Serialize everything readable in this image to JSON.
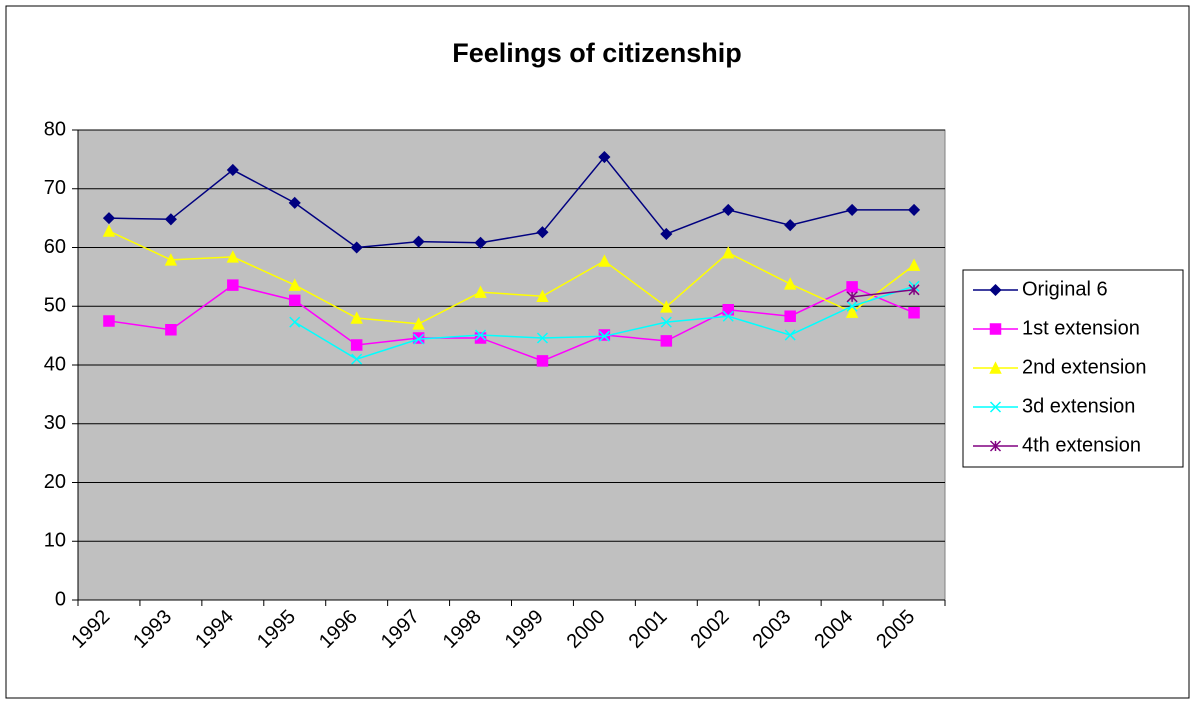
{
  "chart_data": {
    "type": "line",
    "title": "Feelings of citizenship",
    "categories": [
      "1992",
      "1993",
      "1994",
      "1995",
      "1996",
      "1997",
      "1998",
      "1999",
      "2000",
      "2001",
      "2002",
      "2003",
      "2004",
      "2005"
    ],
    "series": [
      {
        "name": "Original 6",
        "color": "#000080",
        "marker": "diamond",
        "values": [
          65,
          64.8,
          73.2,
          67.6,
          60,
          61,
          60.8,
          62.6,
          75.4,
          62.3,
          66.4,
          63.8,
          66.4,
          66.4
        ]
      },
      {
        "name": "1st extension",
        "color": "#ff00ff",
        "marker": "square",
        "values": [
          47.5,
          46,
          53.6,
          51,
          43.4,
          44.6,
          44.6,
          40.7,
          45.1,
          44.1,
          49.4,
          48.3,
          53.3,
          48.9
        ]
      },
      {
        "name": "2nd extension",
        "color": "#ffff00",
        "marker": "triangle",
        "values": [
          62.8,
          57.9,
          58.4,
          53.6,
          48,
          47,
          52.4,
          51.7,
          57.7,
          49.9,
          59.1,
          53.8,
          49,
          57
        ]
      },
      {
        "name": "3d extension",
        "color": "#00ffff",
        "marker": "x",
        "values": [
          null,
          null,
          null,
          47.3,
          41,
          44.4,
          45.1,
          44.6,
          44.9,
          47.3,
          48.3,
          45.1,
          50,
          53.4
        ]
      },
      {
        "name": "4th extension",
        "color": "#800080",
        "marker": "asterisk",
        "values": [
          null,
          null,
          null,
          null,
          null,
          null,
          null,
          null,
          null,
          null,
          null,
          null,
          51.6,
          52.8
        ]
      }
    ],
    "ylim": [
      0,
      80
    ],
    "yticks": [
      0,
      10,
      20,
      30,
      40,
      50,
      60,
      70,
      80
    ],
    "grid": true,
    "legend": "right"
  }
}
